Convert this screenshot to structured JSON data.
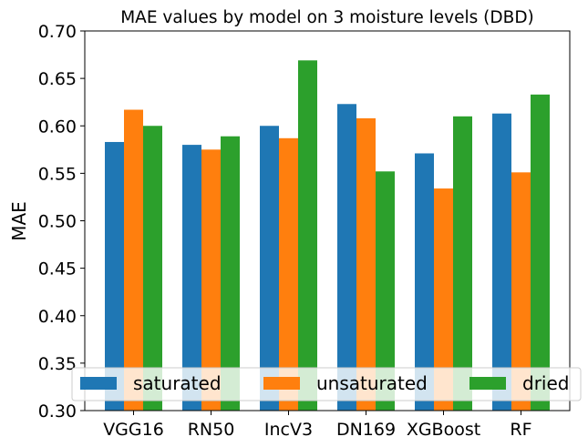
{
  "chart_data": {
    "type": "bar",
    "title": "MAE values by model on 3 moisture levels (DBD)",
    "xlabel": "",
    "ylabel": "MAE",
    "ylim": [
      0.3,
      0.7
    ],
    "yticks": [
      "0.30",
      "0.35",
      "0.40",
      "0.45",
      "0.50",
      "0.55",
      "0.60",
      "0.65",
      "0.70"
    ],
    "categories": [
      "VGG16",
      "RN50",
      "IncV3",
      "DN169",
      "XGBoost",
      "RF"
    ],
    "series": [
      {
        "name": "saturated",
        "color": "#1f77b4",
        "values": [
          0.583,
          0.58,
          0.6,
          0.623,
          0.571,
          0.613
        ]
      },
      {
        "name": "unsaturated",
        "color": "#ff7f0e",
        "values": [
          0.617,
          0.575,
          0.587,
          0.608,
          0.534,
          0.551
        ]
      },
      {
        "name": "dried",
        "color": "#2ca02c",
        "values": [
          0.6,
          0.589,
          0.669,
          0.552,
          0.61,
          0.633
        ]
      }
    ],
    "legend": {
      "placement": "lower center",
      "columns": 3
    },
    "grid": false
  }
}
